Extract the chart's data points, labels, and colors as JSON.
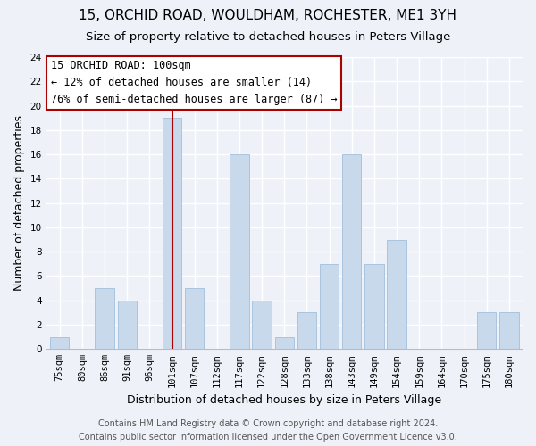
{
  "title": "15, ORCHID ROAD, WOULDHAM, ROCHESTER, ME1 3YH",
  "subtitle": "Size of property relative to detached houses in Peters Village",
  "xlabel": "Distribution of detached houses by size in Peters Village",
  "ylabel": "Number of detached properties",
  "categories": [
    "75sqm",
    "80sqm",
    "86sqm",
    "91sqm",
    "96sqm",
    "101sqm",
    "107sqm",
    "112sqm",
    "117sqm",
    "122sqm",
    "128sqm",
    "133sqm",
    "138sqm",
    "143sqm",
    "149sqm",
    "154sqm",
    "159sqm",
    "164sqm",
    "170sqm",
    "175sqm",
    "180sqm"
  ],
  "values": [
    1,
    0,
    5,
    4,
    0,
    19,
    5,
    0,
    16,
    4,
    1,
    3,
    7,
    16,
    7,
    9,
    0,
    0,
    0,
    3,
    3
  ],
  "bar_color": "#c9d9ec",
  "bar_edge_color": "#a8c4e0",
  "highlight_index": 5,
  "highlight_color": "#aa0000",
  "ylim": [
    0,
    24
  ],
  "yticks": [
    0,
    2,
    4,
    6,
    8,
    10,
    12,
    14,
    16,
    18,
    20,
    22,
    24
  ],
  "annotation_title": "15 ORCHID ROAD: 100sqm",
  "annotation_line1": "← 12% of detached houses are smaller (14)",
  "annotation_line2": "76% of semi-detached houses are larger (87) →",
  "annotation_box_color": "#ffffff",
  "annotation_box_edge": "#aa0000",
  "footer1": "Contains HM Land Registry data © Crown copyright and database right 2024.",
  "footer2": "Contains public sector information licensed under the Open Government Licence v3.0.",
  "bg_color": "#eef2f8",
  "grid_color": "#ffffff",
  "title_fontsize": 11,
  "subtitle_fontsize": 9.5,
  "axis_label_fontsize": 9,
  "tick_fontsize": 7.5,
  "annotation_fontsize": 8.5,
  "footer_fontsize": 7
}
